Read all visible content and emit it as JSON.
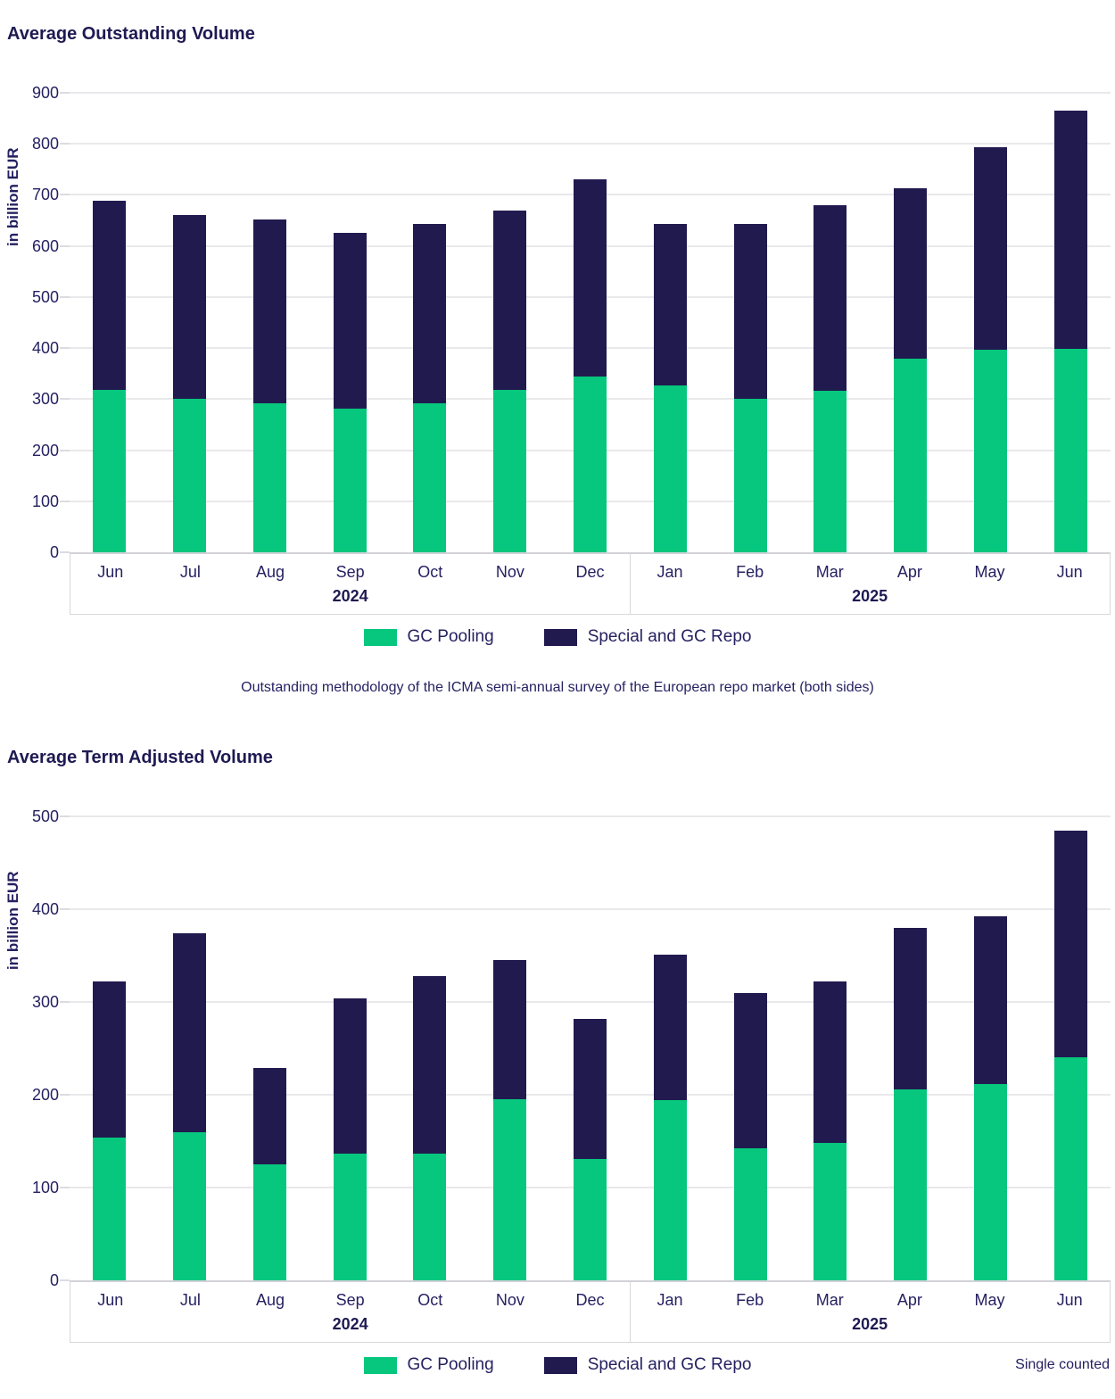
{
  "page_background": "#ffffff",
  "colors": {
    "gc_pooling_green": "#06c77d",
    "special_repo_navy": "#211a4f",
    "text_navy": "#252161",
    "gridline_gray": "#e9e9ec",
    "axis_box_border": "#d8d8dc"
  },
  "chart_data": [
    {
      "type": "bar",
      "stacked": true,
      "title": "Average Outstanding Volume",
      "ylabel": "in billion EUR",
      "xlabel": "",
      "ylim": [
        0,
        900
      ],
      "ytick_step": 100,
      "grid": true,
      "legend_position": "bottom",
      "categories": [
        "Jun",
        "Jul",
        "Aug",
        "Sep",
        "Oct",
        "Nov",
        "Dec",
        "Jan",
        "Feb",
        "Mar",
        "Apr",
        "May",
        "Jun"
      ],
      "year_groups": [
        {
          "label": "2024",
          "span": 7
        },
        {
          "label": "2025",
          "span": 6
        }
      ],
      "series": [
        {
          "name": "GC Pooling",
          "color": "#06c77d",
          "values": [
            318,
            300,
            291,
            282,
            291,
            318,
            345,
            327,
            300,
            317,
            379,
            397,
            398
          ]
        },
        {
          "name": "Special and GC Repo",
          "color": "#211a4f",
          "values": [
            370,
            361,
            361,
            344,
            352,
            351,
            386,
            316,
            343,
            362,
            334,
            396,
            467
          ]
        }
      ],
      "stack_totals": [
        688,
        661,
        652,
        626,
        643,
        669,
        731,
        643,
        643,
        679,
        713,
        793,
        865
      ],
      "caption": "Outstanding methodology of the ICMA semi-annual survey of the European repo market (both sides)",
      "note": ""
    },
    {
      "type": "bar",
      "stacked": true,
      "title": "Average Term Adjusted Volume",
      "ylabel": "in billion EUR",
      "xlabel": "",
      "ylim": [
        0,
        500
      ],
      "ytick_step": 100,
      "grid": true,
      "legend_position": "bottom",
      "categories": [
        "Jun",
        "Jul",
        "Aug",
        "Sep",
        "Oct",
        "Nov",
        "Dec",
        "Jan",
        "Feb",
        "Mar",
        "Apr",
        "May",
        "Jun"
      ],
      "year_groups": [
        {
          "label": "2024",
          "span": 7
        },
        {
          "label": "2025",
          "span": 6
        }
      ],
      "series": [
        {
          "name": "GC Pooling",
          "color": "#06c77d",
          "values": [
            154,
            160,
            125,
            137,
            137,
            195,
            131,
            194,
            142,
            148,
            206,
            212,
            240
          ]
        },
        {
          "name": "Special and GC Repo",
          "color": "#211a4f",
          "values": [
            168,
            214,
            104,
            167,
            191,
            150,
            151,
            157,
            168,
            174,
            174,
            180,
            245
          ]
        }
      ],
      "stack_totals": [
        322,
        374,
        229,
        304,
        328,
        345,
        282,
        351,
        310,
        322,
        380,
        392,
        485
      ],
      "caption": "",
      "note": "Single counted"
    }
  ]
}
